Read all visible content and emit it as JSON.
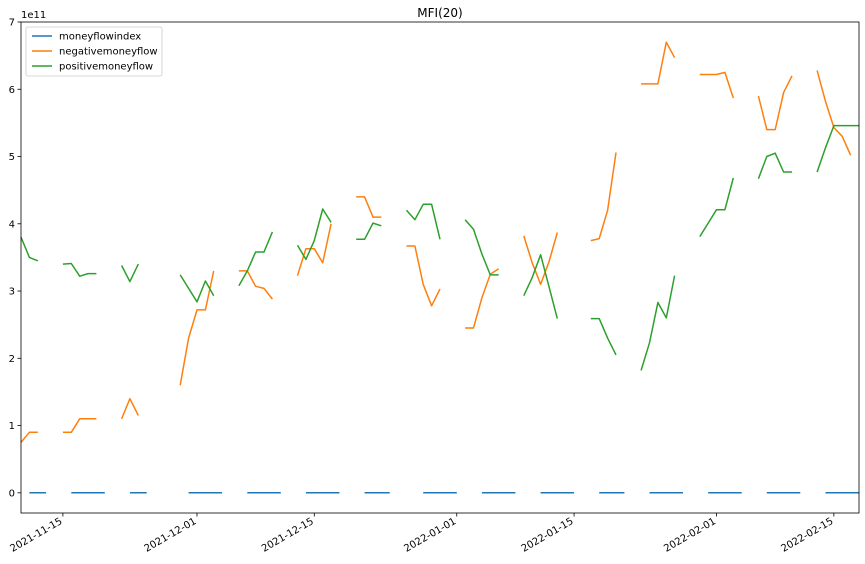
{
  "chart_data": {
    "type": "line",
    "title": "MFI(20)",
    "xlabel": "",
    "ylabel": "",
    "y_exponent_label": "1e11",
    "ylim": [
      -0.3,
      7
    ],
    "yticks": [
      0,
      1,
      2,
      3,
      4,
      5,
      6,
      7
    ],
    "x_range_days": [
      0,
      100
    ],
    "x_ticks": [
      {
        "day": 5,
        "label": "2021-11-15"
      },
      {
        "day": 21,
        "label": "2021-12-01"
      },
      {
        "day": 35,
        "label": "2021-12-15"
      },
      {
        "day": 52,
        "label": "2022-01-01"
      },
      {
        "day": 66,
        "label": "2022-01-15"
      },
      {
        "day": 83,
        "label": "2022-02-01"
      },
      {
        "day": 97,
        "label": "2022-02-15"
      }
    ],
    "legend": {
      "location": "top-left",
      "entries": [
        "moneyflowindex",
        "negativemoneyflow",
        "positivemoneyflow"
      ]
    },
    "series": [
      {
        "name": "moneyflowindex",
        "color": "#1f77b4",
        "segments": [
          [
            [
              1,
              0
            ],
            [
              3,
              0
            ]
          ],
          [
            [
              6,
              0
            ],
            [
              10,
              0
            ]
          ],
          [
            [
              13,
              0
            ],
            [
              15,
              0
            ]
          ],
          [
            [
              20,
              0
            ],
            [
              24,
              0
            ]
          ],
          [
            [
              27,
              0
            ],
            [
              31,
              0
            ]
          ],
          [
            [
              34,
              0
            ],
            [
              38,
              0
            ]
          ],
          [
            [
              41,
              0
            ],
            [
              44,
              0
            ]
          ],
          [
            [
              48,
              0
            ],
            [
              52,
              0
            ]
          ],
          [
            [
              55,
              0
            ],
            [
              59,
              0
            ]
          ],
          [
            [
              62,
              0
            ],
            [
              66,
              0
            ]
          ],
          [
            [
              69,
              0
            ],
            [
              72,
              0
            ]
          ],
          [
            [
              75,
              0
            ],
            [
              79,
              0
            ]
          ],
          [
            [
              82,
              0
            ],
            [
              86,
              0
            ]
          ],
          [
            [
              89,
              0
            ],
            [
              93,
              0
            ]
          ],
          [
            [
              96,
              0
            ],
            [
              100,
              0
            ]
          ]
        ]
      },
      {
        "name": "negativemoneyflow",
        "color": "#ff7f0e",
        "segments": [
          [
            [
              0,
              0.75
            ],
            [
              1,
              0.9
            ],
            [
              2,
              0.9
            ]
          ],
          [
            [
              5,
              0.9
            ],
            [
              6,
              0.9
            ],
            [
              7,
              1.1
            ],
            [
              8,
              1.1
            ],
            [
              9,
              1.1
            ]
          ],
          [
            [
              12,
              1.1
            ],
            [
              13,
              1.4
            ],
            [
              14,
              1.15
            ]
          ],
          [
            [
              19,
              1.6
            ],
            [
              20,
              2.3
            ],
            [
              21,
              2.72
            ],
            [
              22,
              2.72
            ],
            [
              23,
              3.3
            ]
          ],
          [
            [
              26,
              3.3
            ],
            [
              27,
              3.3
            ],
            [
              28,
              3.07
            ],
            [
              29,
              3.04
            ],
            [
              30,
              2.88
            ]
          ],
          [
            [
              33,
              3.23
            ],
            [
              34,
              3.63
            ],
            [
              35,
              3.63
            ],
            [
              36,
              3.42
            ],
            [
              37,
              4.0
            ]
          ],
          [
            [
              40,
              4.4
            ],
            [
              41,
              4.4
            ],
            [
              42,
              4.1
            ],
            [
              43,
              4.1
            ]
          ],
          [
            [
              46,
              3.67
            ],
            [
              47,
              3.67
            ],
            [
              48,
              3.1
            ],
            [
              49,
              2.78
            ],
            [
              50,
              3.03
            ]
          ],
          [
            [
              53,
              2.45
            ],
            [
              54,
              2.45
            ],
            [
              55,
              2.9
            ],
            [
              56,
              3.25
            ],
            [
              57,
              3.33
            ]
          ],
          [
            [
              60,
              3.82
            ],
            [
              61,
              3.42
            ],
            [
              62,
              3.1
            ],
            [
              63,
              3.43
            ],
            [
              64,
              3.87
            ]
          ],
          [
            [
              68,
              3.75
            ],
            [
              69,
              3.78
            ],
            [
              70,
              4.2
            ],
            [
              71,
              5.06
            ]
          ],
          [
            [
              74,
              6.08
            ],
            [
              75,
              6.08
            ],
            [
              76,
              6.08
            ],
            [
              77,
              6.7
            ],
            [
              78,
              6.47
            ]
          ],
          [
            [
              81,
              6.22
            ],
            [
              82,
              6.22
            ],
            [
              83,
              6.22
            ],
            [
              84,
              6.25
            ],
            [
              85,
              5.87
            ]
          ],
          [
            [
              88,
              5.9
            ],
            [
              89,
              5.4
            ],
            [
              90,
              5.4
            ],
            [
              91,
              5.95
            ],
            [
              92,
              6.2
            ]
          ],
          [
            [
              95,
              6.28
            ],
            [
              96,
              5.82
            ],
            [
              97,
              5.43
            ],
            [
              98,
              5.3
            ],
            [
              99,
              5.02
            ]
          ]
        ]
      },
      {
        "name": "positivemoneyflow",
        "color": "#2ca02c",
        "segments": [
          [
            [
              0,
              3.8
            ],
            [
              1,
              3.5
            ],
            [
              2,
              3.45
            ]
          ],
          [
            [
              5,
              3.4
            ],
            [
              6,
              3.41
            ],
            [
              7,
              3.22
            ],
            [
              8,
              3.26
            ],
            [
              9,
              3.26
            ]
          ],
          [
            [
              12,
              3.38
            ],
            [
              13,
              3.14
            ],
            [
              14,
              3.4
            ]
          ],
          [
            [
              19,
              3.24
            ],
            [
              20,
              3.04
            ],
            [
              21,
              2.84
            ],
            [
              22,
              3.15
            ],
            [
              23,
              2.93
            ]
          ],
          [
            [
              26,
              3.08
            ],
            [
              27,
              3.3
            ],
            [
              28,
              3.58
            ],
            [
              29,
              3.58
            ],
            [
              30,
              3.88
            ]
          ],
          [
            [
              33,
              3.68
            ],
            [
              34,
              3.47
            ],
            [
              35,
              3.75
            ],
            [
              36,
              4.22
            ],
            [
              37,
              4.02
            ]
          ],
          [
            [
              40,
              3.77
            ],
            [
              41,
              3.77
            ],
            [
              42,
              4.01
            ],
            [
              43,
              3.97
            ]
          ],
          [
            [
              46,
              4.2
            ],
            [
              47,
              4.06
            ],
            [
              48,
              4.29
            ],
            [
              49,
              4.29
            ],
            [
              50,
              3.77
            ]
          ],
          [
            [
              53,
              4.06
            ],
            [
              54,
              3.92
            ],
            [
              55,
              3.55
            ],
            [
              56,
              3.24
            ],
            [
              57,
              3.24
            ]
          ],
          [
            [
              60,
              2.93
            ],
            [
              61,
              3.2
            ],
            [
              62,
              3.54
            ],
            [
              63,
              3.07
            ],
            [
              64,
              2.59
            ]
          ],
          [
            [
              68,
              2.59
            ],
            [
              69,
              2.59
            ],
            [
              70,
              2.3
            ],
            [
              71,
              2.05
            ]
          ],
          [
            [
              74,
              1.82
            ],
            [
              75,
              2.23
            ],
            [
              76,
              2.83
            ],
            [
              77,
              2.6
            ],
            [
              78,
              3.23
            ]
          ],
          [
            [
              81,
              3.81
            ],
            [
              82,
              4.01
            ],
            [
              83,
              4.21
            ],
            [
              84,
              4.21
            ],
            [
              85,
              4.68
            ]
          ],
          [
            [
              88,
              4.67
            ],
            [
              89,
              5.0
            ],
            [
              90,
              5.05
            ],
            [
              91,
              4.77
            ],
            [
              92,
              4.77
            ]
          ],
          [
            [
              95,
              4.77
            ],
            [
              96,
              5.13
            ],
            [
              97,
              5.46
            ],
            [
              98,
              5.46
            ],
            [
              99,
              5.46
            ],
            [
              100,
              5.46
            ]
          ]
        ]
      }
    ]
  }
}
